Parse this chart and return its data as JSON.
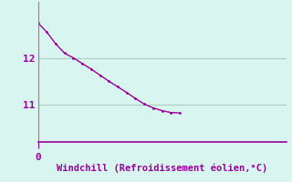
{
  "x_data": [
    0,
    1,
    2,
    3,
    4,
    5,
    6,
    7,
    8,
    9,
    10,
    11,
    12,
    13,
    14,
    15,
    16
  ],
  "y_data": [
    12.75,
    12.55,
    12.3,
    12.1,
    12.0,
    11.88,
    11.76,
    11.63,
    11.5,
    11.38,
    11.26,
    11.13,
    11.01,
    10.93,
    10.87,
    10.83,
    10.82
  ],
  "ylim": [
    10.2,
    13.2
  ],
  "xlim": [
    0,
    28
  ],
  "yticks": [
    11,
    12
  ],
  "xticks": [
    0
  ],
  "line_color": "#990099",
  "bg_color": "#d8f5f0",
  "grid_color": "#aaccc4",
  "xlabel": "Windchill (Refroidissement éolien,°C)",
  "xlabel_color": "#990099",
  "xlabel_fontsize": 7.5,
  "tick_color": "#990099",
  "tick_fontsize": 8,
  "spine_color": "#888888",
  "line_width": 1.0,
  "markersize": 2.0,
  "bottom_spine_color": "#990099"
}
